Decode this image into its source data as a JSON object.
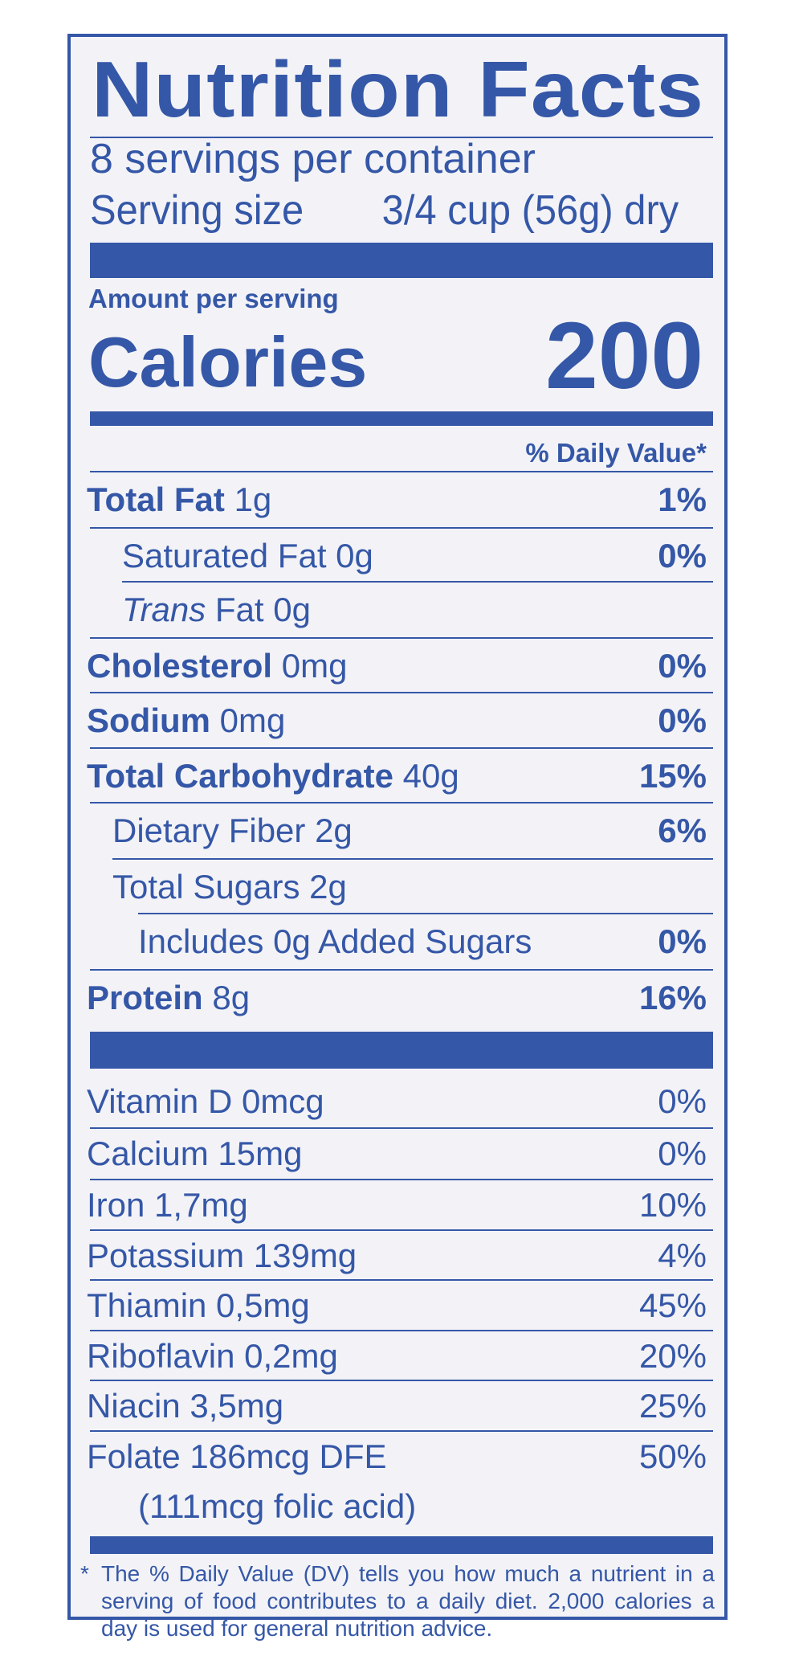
{
  "label": {
    "title": "Nutrition Facts",
    "servings_per_container": "8 servings per container",
    "serving_size_label": "Serving size",
    "serving_size_value": "3/4 cup (56g) dry",
    "amount_per_serving": "Amount per serving",
    "calories_label": "Calories",
    "calories_value": "200",
    "daily_value_header": "% Daily Value*"
  },
  "nutrients": [
    {
      "name": "Total Fat",
      "amount": "1g",
      "dv": "1%"
    },
    {
      "name": "Saturated Fat",
      "amount": "0g",
      "dv": "0%"
    },
    {
      "name": "Trans",
      "name_suffix": "Fat",
      "amount": "0g",
      "dv": ""
    },
    {
      "name": "Cholesterol",
      "amount": "0mg",
      "dv": "0%"
    },
    {
      "name": "Sodium",
      "amount": "0mg",
      "dv": "0%"
    },
    {
      "name": "Total Carbohydrate",
      "amount": "40g",
      "dv": "15%"
    },
    {
      "name": "Dietary Fiber",
      "amount": "2g",
      "dv": "6%"
    },
    {
      "name": "Total Sugars",
      "amount": "2g",
      "dv": ""
    },
    {
      "name": "Includes 0g Added Sugars",
      "amount": "",
      "dv": "0%"
    },
    {
      "name": "Protein",
      "amount": "8g",
      "dv": "16%"
    }
  ],
  "vitamins": [
    {
      "text": "Vitamin D 0mcg",
      "dv": "0%"
    },
    {
      "text": "Calcium 15mg",
      "dv": "0%"
    },
    {
      "text": "Iron 1,7mg",
      "dv": "10%"
    },
    {
      "text": "Potassium 139mg",
      "dv": "4%"
    },
    {
      "text": "Thiamin 0,5mg",
      "dv": "45%"
    },
    {
      "text": "Riboflavin 0,2mg",
      "dv": "20%"
    },
    {
      "text": "Niacin 3,5mg",
      "dv": "25%"
    },
    {
      "text": "Folate 186mcg DFE",
      "dv": "50%"
    }
  ],
  "folate_note": "(111mcg folic acid)",
  "footnote": {
    "star": "*",
    "text": "The % Daily Value (DV) tells you how much a nutrient in a serving of food contributes to a daily diet. 2,000 calories a day is used for general nutrition advice."
  },
  "colors": {
    "ink": "#3557a7",
    "background": "#f3f3f7"
  }
}
